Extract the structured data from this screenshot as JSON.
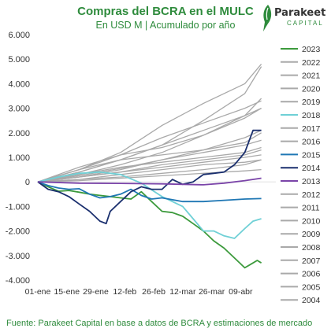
{
  "header": {
    "title": "Compras del BCRA en el MULC",
    "subtitle": "En USD M | Acumulado por año"
  },
  "logo": {
    "name": "Parakeet",
    "sub": "CAPITAL"
  },
  "footer": {
    "source": "Fuente: Parakeet Capital en base a datos de BCRA y estimaciones de mercado"
  },
  "colors": {
    "grey": "#a9a9a9",
    "green": "#3c9a3c",
    "navy": "#1a2f6e",
    "blue": "#1f77b4",
    "cyan": "#6fd0d6",
    "purple": "#7a44a8",
    "text": "#2e8b3c"
  },
  "chart_data": {
    "type": "line",
    "title": "Compras del BCRA en el MULC",
    "subtitle": "En USD M | Acumulado por año",
    "ylim": [
      -4000,
      6000
    ],
    "yticks": [
      "6.000",
      "5.000",
      "4.000",
      "3.000",
      "2.000",
      "1.000",
      "0",
      "-1.000",
      "-2.000",
      "-3.000",
      "-4.000"
    ],
    "xlim": [
      0,
      115
    ],
    "xticks": [
      {
        "day": 0,
        "label": "01-ene"
      },
      {
        "day": 14,
        "label": "15-ene"
      },
      {
        "day": 28,
        "label": "29-ene"
      },
      {
        "day": 42,
        "label": "12-feb"
      },
      {
        "day": 56,
        "label": "26-feb"
      },
      {
        "day": 70,
        "label": "12-mar"
      },
      {
        "day": 84,
        "label": "26-mar"
      },
      {
        "day": 98,
        "label": "09-abr"
      }
    ],
    "x_unit": "días desde 01-ene",
    "legend_position": "right",
    "series": [
      {
        "name": "2023",
        "color": "#3c9a3c",
        "x": [
          0,
          5,
          10,
          15,
          20,
          25,
          30,
          35,
          40,
          45,
          50,
          55,
          60,
          65,
          70,
          75,
          80,
          85,
          90,
          95,
          100,
          104,
          106,
          108
        ],
        "y": [
          0,
          -200,
          -380,
          -350,
          -420,
          -500,
          -550,
          -600,
          -650,
          -700,
          -400,
          -800,
          -1200,
          -1250,
          -1400,
          -1700,
          -2000,
          -2400,
          -2700,
          -3100,
          -3500,
          -3300,
          -3200,
          -3300
        ]
      },
      {
        "name": "2022",
        "color": "#a9a9a9",
        "x": [
          0,
          20,
          40,
          60,
          80,
          100,
          108
        ],
        "y": [
          0,
          400,
          900,
          1500,
          2500,
          3600,
          4700
        ]
      },
      {
        "name": "2021",
        "color": "#a9a9a9",
        "x": [
          0,
          20,
          40,
          60,
          80,
          100,
          108
        ],
        "y": [
          0,
          500,
          1200,
          2300,
          3200,
          4000,
          4800
        ]
      },
      {
        "name": "2020",
        "color": "#a9a9a9",
        "x": [
          0,
          20,
          40,
          60,
          80,
          100,
          108
        ],
        "y": [
          0,
          300,
          700,
          1200,
          1900,
          2700,
          3400
        ]
      },
      {
        "name": "2019",
        "color": "#a9a9a9",
        "x": [
          0,
          20,
          40,
          60,
          80,
          100,
          108
        ],
        "y": [
          0,
          400,
          900,
          1500,
          2100,
          2700,
          3000
        ]
      },
      {
        "name": "2018",
        "color": "#6fd0d6",
        "x": [
          0,
          10,
          20,
          30,
          40,
          50,
          60,
          70,
          75,
          80,
          85,
          90,
          95,
          100,
          104,
          108
        ],
        "y": [
          0,
          200,
          350,
          400,
          300,
          -50,
          -600,
          -1000,
          -1500,
          -2000,
          -2000,
          -2200,
          -2300,
          -1900,
          -1600,
          -1500
        ]
      },
      {
        "name": "2017",
        "color": "#a9a9a9",
        "x": [
          0,
          20,
          40,
          60,
          80,
          100,
          108
        ],
        "y": [
          0,
          600,
          1100,
          1400,
          1900,
          2600,
          3000
        ]
      },
      {
        "name": "2016",
        "color": "#a9a9a9",
        "x": [
          0,
          20,
          40,
          60,
          80,
          100,
          108
        ],
        "y": [
          0,
          500,
          900,
          1100,
          1300,
          1600,
          2000
        ]
      },
      {
        "name": "2015",
        "color": "#1f77b4",
        "x": [
          0,
          5,
          10,
          15,
          20,
          25,
          30,
          35,
          40,
          45,
          50,
          55,
          60,
          70,
          80,
          90,
          100,
          108
        ],
        "y": [
          0,
          -150,
          -250,
          -300,
          -280,
          -500,
          -650,
          -600,
          -500,
          -300,
          -550,
          -700,
          -650,
          -800,
          -800,
          -750,
          -700,
          -680
        ]
      },
      {
        "name": "2014",
        "color": "#1a2f6e",
        "x": [
          0,
          5,
          10,
          15,
          20,
          25,
          30,
          33,
          35,
          40,
          45,
          50,
          55,
          60,
          65,
          70,
          75,
          80,
          85,
          90,
          95,
          100,
          104,
          108
        ],
        "y": [
          0,
          -300,
          -400,
          -600,
          -900,
          -1200,
          -1600,
          -1700,
          -1200,
          -800,
          -400,
          -200,
          -300,
          -300,
          100,
          -100,
          0,
          300,
          350,
          400,
          700,
          1200,
          2100,
          2100
        ]
      },
      {
        "name": "2013",
        "color": "#7a44a8",
        "x": [
          0,
          20,
          40,
          60,
          70,
          80,
          90,
          100,
          108
        ],
        "y": [
          0,
          -50,
          -60,
          -80,
          -100,
          -120,
          -50,
          50,
          150
        ]
      },
      {
        "name": "2012",
        "color": "#a9a9a9",
        "x": [
          0,
          20,
          40,
          60,
          80,
          100,
          108
        ],
        "y": [
          0,
          200,
          500,
          900,
          1200,
          1500,
          1700
        ]
      },
      {
        "name": "2011",
        "color": "#a9a9a9",
        "x": [
          0,
          20,
          40,
          60,
          80,
          100,
          108
        ],
        "y": [
          0,
          300,
          600,
          800,
          1000,
          1200,
          1400
        ]
      },
      {
        "name": "2010",
        "color": "#a9a9a9",
        "x": [
          0,
          20,
          40,
          60,
          80,
          100,
          108
        ],
        "y": [
          0,
          200,
          400,
          600,
          800,
          1000,
          1100
        ]
      },
      {
        "name": "2009",
        "color": "#a9a9a9",
        "x": [
          0,
          20,
          40,
          60,
          80,
          100,
          108
        ],
        "y": [
          0,
          100,
          200,
          350,
          500,
          700,
          900
        ]
      },
      {
        "name": "2008",
        "color": "#a9a9a9",
        "x": [
          0,
          20,
          40,
          60,
          80,
          100,
          108
        ],
        "y": [
          0,
          250,
          550,
          900,
          1300,
          1800,
          2100
        ]
      },
      {
        "name": "2007",
        "color": "#a9a9a9",
        "x": [
          0,
          20,
          40,
          60,
          80,
          100,
          108
        ],
        "y": [
          0,
          500,
          1100,
          1800,
          2400,
          3000,
          3300
        ]
      },
      {
        "name": "2006",
        "color": "#a9a9a9",
        "x": [
          0,
          20,
          40,
          60,
          80,
          100,
          108
        ],
        "y": [
          0,
          100,
          300,
          500,
          700,
          800,
          900
        ]
      },
      {
        "name": "2005",
        "color": "#a9a9a9",
        "x": [
          0,
          20,
          40,
          60,
          80,
          100,
          108
        ],
        "y": [
          0,
          200,
          400,
          700,
          900,
          1100,
          1300
        ]
      },
      {
        "name": "2004",
        "color": "#a9a9a9",
        "x": [
          0,
          20,
          40,
          60,
          80,
          100,
          108
        ],
        "y": [
          0,
          50,
          150,
          250,
          350,
          450,
          500
        ]
      }
    ]
  }
}
